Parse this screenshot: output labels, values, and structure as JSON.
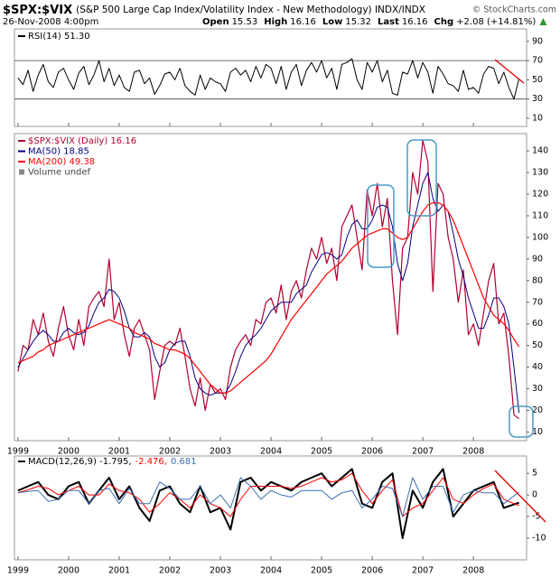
{
  "header": {
    "symbol": "$SPX:$VIX",
    "description": "(S&P 500 Large Cap Index/Volatility Index - New Methodology) INDX/INDX",
    "date": "26-Nov-2008 4:00pm",
    "copyright": "© StockCharts.com",
    "quote": [
      {
        "label": "Open",
        "value": "15.53"
      },
      {
        "label": "High",
        "value": "16.16"
      },
      {
        "label": "Low",
        "value": "15.32"
      },
      {
        "label": "Last",
        "value": "16.16"
      },
      {
        "label": "Chg",
        "value": "+2.08 (+14.81%)"
      }
    ]
  },
  "chart_data": [
    {
      "type": "line",
      "xlim": [
        1998.93,
        2009.05
      ],
      "xticks": [
        1999,
        2000,
        2001,
        2002,
        2003,
        2004,
        2005,
        2006,
        2007,
        2008
      ],
      "x_labels": false,
      "ylim": [
        1.5,
        103
      ],
      "yticks": [
        10,
        30,
        50,
        70,
        90
      ],
      "ref_lines": [
        30,
        70
      ],
      "legend_layout": "column",
      "x": [
        1999,
        1999.1,
        1999.2,
        1999.3,
        1999.4,
        1999.5,
        1999.6,
        1999.7,
        1999.8,
        1999.9,
        2000,
        2000.1,
        2000.2,
        2000.3,
        2000.4,
        2000.5,
        2000.6,
        2000.7,
        2000.8,
        2000.9,
        2001,
        2001.1,
        2001.2,
        2001.3,
        2001.4,
        2001.5,
        2001.6,
        2001.7,
        2001.8,
        2001.9,
        2002,
        2002.1,
        2002.2,
        2002.3,
        2002.4,
        2002.5,
        2002.6,
        2002.7,
        2002.8,
        2002.9,
        2003,
        2003.1,
        2003.2,
        2003.3,
        2003.4,
        2003.5,
        2003.6,
        2003.7,
        2003.8,
        2003.9,
        2004,
        2004.1,
        2004.2,
        2004.3,
        2004.4,
        2004.5,
        2004.6,
        2004.7,
        2004.8,
        2004.9,
        2005,
        2005.1,
        2005.2,
        2005.3,
        2005.4,
        2005.5,
        2005.6,
        2005.7,
        2005.8,
        2005.9,
        2006,
        2006.1,
        2006.2,
        2006.3,
        2006.4,
        2006.5,
        2006.6,
        2006.7,
        2006.8,
        2006.9,
        2007,
        2007.1,
        2007.2,
        2007.3,
        2007.4,
        2007.5,
        2007.6,
        2007.7,
        2007.8,
        2007.9,
        2008,
        2008.1,
        2008.2,
        2008.3,
        2008.4,
        2008.5,
        2008.6,
        2008.7,
        2008.8,
        2008.9
      ],
      "series": [
        {
          "name": "RSI(14) 51.30",
          "color": "#000000",
          "width": 1,
          "values": [
            52,
            45,
            60,
            38,
            55,
            66,
            48,
            42,
            58,
            62,
            50,
            40,
            57,
            64,
            45,
            55,
            70,
            48,
            62,
            44,
            55,
            42,
            38,
            58,
            60,
            46,
            52,
            35,
            44,
            56,
            58,
            50,
            62,
            44,
            38,
            34,
            55,
            40,
            52,
            48,
            46,
            38,
            58,
            62,
            55,
            60,
            48,
            64,
            52,
            66,
            62,
            46,
            64,
            40,
            58,
            66,
            44,
            60,
            68,
            58,
            70,
            52,
            62,
            40,
            66,
            68,
            72,
            50,
            40,
            68,
            58,
            70,
            48,
            60,
            36,
            34,
            58,
            56,
            70,
            52,
            68,
            58,
            36,
            64,
            56,
            46,
            44,
            38,
            60,
            40,
            42,
            36,
            56,
            64,
            62,
            46,
            58,
            42,
            30,
            51.3
          ]
        }
      ]
    },
    {
      "type": "line",
      "xlim": [
        1998.93,
        2009.05
      ],
      "xticks": [
        1999,
        2000,
        2001,
        2002,
        2003,
        2004,
        2005,
        2006,
        2007,
        2008
      ],
      "x_labels": true,
      "ylim": [
        6,
        148
      ],
      "yticks": [
        10,
        20,
        30,
        40,
        50,
        60,
        70,
        80,
        90,
        100,
        110,
        120,
        130,
        140
      ],
      "legend_layout": "column",
      "volume_label": "Volume undef",
      "x": [
        1999,
        1999.1,
        1999.2,
        1999.3,
        1999.4,
        1999.5,
        1999.6,
        1999.7,
        1999.8,
        1999.9,
        2000,
        2000.1,
        2000.2,
        2000.3,
        2000.4,
        2000.5,
        2000.6,
        2000.7,
        2000.8,
        2000.9,
        2001,
        2001.1,
        2001.2,
        2001.3,
        2001.4,
        2001.5,
        2001.6,
        2001.7,
        2001.8,
        2001.9,
        2002,
        2002.1,
        2002.2,
        2002.3,
        2002.4,
        2002.5,
        2002.6,
        2002.7,
        2002.8,
        2002.9,
        2003,
        2003.1,
        2003.2,
        2003.3,
        2003.4,
        2003.5,
        2003.6,
        2003.7,
        2003.8,
        2003.9,
        2004,
        2004.1,
        2004.2,
        2004.3,
        2004.4,
        2004.5,
        2004.6,
        2004.7,
        2004.8,
        2004.9,
        2005,
        2005.1,
        2005.2,
        2005.3,
        2005.4,
        2005.5,
        2005.6,
        2005.7,
        2005.8,
        2005.9,
        2006,
        2006.1,
        2006.2,
        2006.3,
        2006.4,
        2006.5,
        2006.6,
        2006.7,
        2006.8,
        2006.9,
        2007,
        2007.1,
        2007.2,
        2007.3,
        2007.4,
        2007.5,
        2007.6,
        2007.7,
        2007.8,
        2007.9,
        2008,
        2008.1,
        2008.2,
        2008.3,
        2008.4,
        2008.5,
        2008.6,
        2008.7,
        2008.8,
        2008.9
      ],
      "series": [
        {
          "name": "$SPX:$VIX (Daily) 16.16",
          "color": "#b00030",
          "width": 1.2,
          "values": [
            38,
            50,
            48,
            62,
            55,
            65,
            52,
            45,
            58,
            68,
            55,
            48,
            62,
            50,
            68,
            72,
            75,
            68,
            90,
            62,
            70,
            55,
            45,
            58,
            62,
            55,
            48,
            25,
            38,
            50,
            52,
            50,
            58,
            45,
            30,
            22,
            35,
            20,
            32,
            28,
            30,
            25,
            40,
            48,
            52,
            55,
            50,
            62,
            60,
            70,
            72,
            65,
            78,
            62,
            75,
            80,
            72,
            85,
            95,
            90,
            100,
            88,
            95,
            80,
            105,
            110,
            115,
            100,
            85,
            122,
            110,
            125,
            105,
            118,
            80,
            55,
            95,
            100,
            130,
            120,
            145,
            135,
            75,
            125,
            120,
            100,
            90,
            70,
            85,
            55,
            60,
            50,
            65,
            80,
            88,
            60,
            65,
            45,
            18,
            16.16
          ]
        },
        {
          "name": "MA(50) 18.85",
          "color": "#000080",
          "width": 1,
          "values": [
            40,
            44,
            48,
            52,
            55,
            57,
            55,
            52,
            52,
            56,
            58,
            56,
            55,
            56,
            59,
            65,
            70,
            72,
            76,
            75,
            72,
            66,
            58,
            54,
            54,
            56,
            54,
            45,
            40,
            42,
            48,
            51,
            52,
            52,
            45,
            35,
            30,
            28,
            27,
            28,
            28,
            28,
            32,
            38,
            45,
            50,
            53,
            55,
            58,
            62,
            66,
            68,
            70,
            70,
            70,
            74,
            76,
            78,
            84,
            88,
            92,
            93,
            92,
            90,
            92,
            100,
            106,
            108,
            104,
            104,
            108,
            114,
            115,
            114,
            105,
            88,
            80,
            88,
            105,
            115,
            125,
            130,
            118,
            112,
            115,
            112,
            102,
            90,
            82,
            72,
            65,
            58,
            58,
            64,
            72,
            72,
            68,
            60,
            40,
            18.85
          ]
        },
        {
          "name": "MA(200) 49.38",
          "color": "#ff0000",
          "width": 1.2,
          "values": [
            42,
            43,
            44,
            45,
            47,
            48,
            50,
            51,
            52,
            53,
            54,
            55,
            56,
            57,
            58,
            59,
            60,
            61,
            62,
            61,
            60,
            59,
            58,
            56,
            55,
            54,
            53,
            51,
            50,
            49,
            48,
            48,
            47,
            46,
            44,
            41,
            38,
            35,
            32,
            30,
            28,
            28,
            29,
            31,
            33,
            35,
            37,
            39,
            41,
            43,
            46,
            50,
            54,
            58,
            62,
            65,
            68,
            71,
            74,
            77,
            80,
            83,
            85,
            87,
            89,
            92,
            95,
            97,
            99,
            101,
            102,
            103,
            104,
            104,
            102,
            100,
            99,
            100,
            104,
            108,
            112,
            115,
            116,
            116,
            115,
            112,
            108,
            102,
            96,
            90,
            84,
            78,
            72,
            68,
            64,
            62,
            60,
            57,
            53,
            49.38
          ]
        }
      ]
    },
    {
      "type": "line",
      "xlim": [
        1998.93,
        2009.05
      ],
      "xticks": [
        1999,
        2000,
        2001,
        2002,
        2003,
        2004,
        2005,
        2006,
        2007,
        2008
      ],
      "x_labels": true,
      "ylim": [
        -15,
        9
      ],
      "yticks": [
        5,
        0,
        -5,
        -10
      ],
      "legend_layout": "row",
      "x": [
        1999,
        1999.2,
        1999.4,
        1999.6,
        1999.8,
        2000,
        2000.2,
        2000.4,
        2000.6,
        2000.8,
        2001,
        2001.2,
        2001.4,
        2001.6,
        2001.8,
        2002,
        2002.2,
        2002.4,
        2002.6,
        2002.8,
        2003,
        2003.2,
        2003.4,
        2003.6,
        2003.8,
        2004,
        2004.2,
        2004.4,
        2004.6,
        2004.8,
        2005,
        2005.2,
        2005.4,
        2005.6,
        2005.8,
        2006,
        2006.2,
        2006.4,
        2006.6,
        2006.8,
        2007,
        2007.2,
        2007.4,
        2007.6,
        2007.8,
        2008,
        2008.2,
        2008.4,
        2008.6,
        2008.9
      ],
      "series": [
        {
          "name": "MACD(12,26,9) -1.795,",
          "color": "#000000",
          "width": 2,
          "values": [
            1,
            2,
            3,
            0,
            -1,
            2,
            3,
            -2,
            1,
            4,
            -1,
            2,
            -3,
            -6,
            1,
            2,
            -2,
            -4,
            2,
            -4,
            -3,
            -8,
            3,
            4,
            1,
            3,
            2,
            1,
            3,
            4,
            5,
            2,
            4,
            6,
            -2,
            -3,
            3,
            5,
            -10,
            1,
            -3,
            3,
            6,
            -5,
            -2,
            1,
            2,
            3,
            -3,
            -1.795
          ]
        },
        {
          "name": "-2.476,",
          "color": "#ff0000",
          "width": 1,
          "values": [
            0.5,
            1.2,
            2,
            1.5,
            0,
            1,
            2,
            0,
            0,
            2.5,
            1,
            0.5,
            -1,
            -4,
            -2,
            0.5,
            -1,
            -3,
            0,
            -2,
            -3,
            -5,
            -1,
            2,
            2,
            2,
            2,
            1.5,
            2,
            3,
            4,
            3,
            3.5,
            5,
            1,
            -2,
            1,
            3.5,
            -5,
            -3,
            -2,
            1,
            4,
            -1,
            -2,
            0,
            1.5,
            2.5,
            -1,
            -2.476
          ]
        },
        {
          "name": "0.681",
          "color": "#3a6fb0",
          "width": 1,
          "values": [
            0.5,
            0.8,
            1,
            -1.5,
            -1,
            1,
            1,
            -2,
            1,
            1.5,
            -2,
            1.5,
            -2,
            -2,
            3,
            1.5,
            -1,
            -1,
            2,
            -2,
            0,
            -3,
            4,
            2,
            -1,
            1,
            0,
            -0.5,
            1,
            1,
            1,
            -1,
            0.5,
            1,
            -3,
            -1,
            2,
            1.5,
            -5,
            4,
            -1,
            2,
            2,
            -4,
            0,
            1,
            0.5,
            0.5,
            -2,
            0.681
          ]
        }
      ]
    }
  ]
}
